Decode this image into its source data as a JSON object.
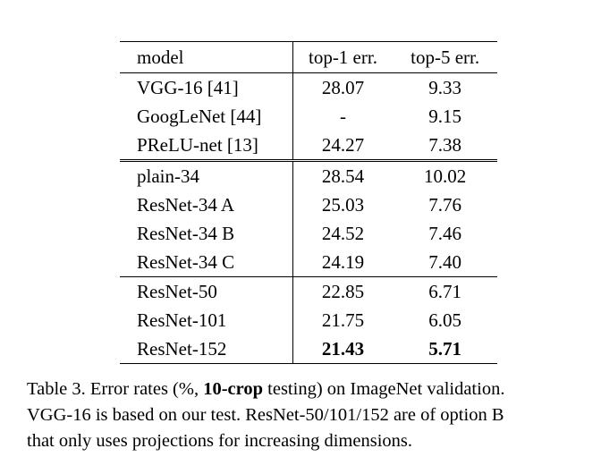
{
  "table": {
    "headers": [
      "model",
      "top-1 err.",
      "top-5 err."
    ],
    "groups": [
      [
        {
          "model": "VGG-16 [41]",
          "top1": "28.07",
          "top5": "9.33"
        },
        {
          "model": "GoogLeNet [44]",
          "top1": "-",
          "top5": "9.15"
        },
        {
          "model": "PReLU-net [13]",
          "top1": "24.27",
          "top5": "7.38"
        }
      ],
      [
        {
          "model": "plain-34",
          "top1": "28.54",
          "top5": "10.02"
        },
        {
          "model": "ResNet-34 A",
          "top1": "25.03",
          "top5": "7.76"
        },
        {
          "model": "ResNet-34 B",
          "top1": "24.52",
          "top5": "7.46"
        },
        {
          "model": "ResNet-34 C",
          "top1": "24.19",
          "top5": "7.40"
        }
      ],
      [
        {
          "model": "ResNet-50",
          "top1": "22.85",
          "top5": "6.71"
        },
        {
          "model": "ResNet-101",
          "top1": "21.75",
          "top5": "6.05"
        },
        {
          "model": "ResNet-152",
          "top1": "21.43",
          "top5": "5.71"
        }
      ]
    ]
  },
  "caption": {
    "part1": "Table 3. Error rates (%, ",
    "bold": "10-crop",
    "part2": " testing) on ImageNet validation.",
    "line2": "VGG-16 is based on our test. ResNet-50/101/152 are of option B",
    "line3": "that only uses projections for increasing dimensions."
  }
}
